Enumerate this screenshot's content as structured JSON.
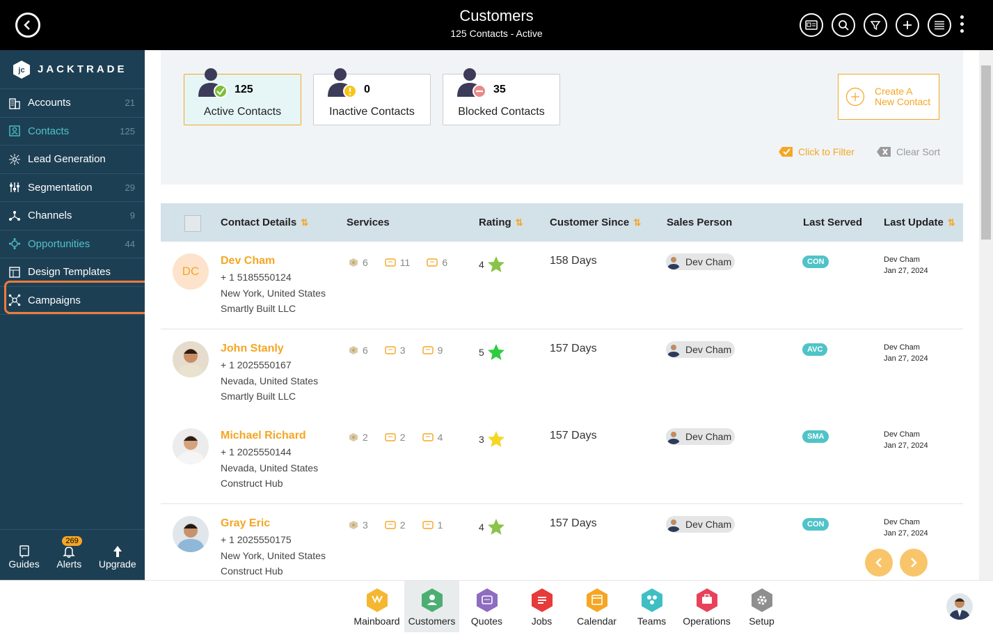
{
  "header": {
    "title": "Customers",
    "subtitle": "125 Contacts - Active"
  },
  "sidebar": {
    "logo_text": "JACKTRADE",
    "items": [
      {
        "label": "Accounts",
        "count": "21",
        "icon": "building-icon"
      },
      {
        "label": "Contacts",
        "count": "125",
        "icon": "contacts-icon"
      },
      {
        "label": "Lead Generation",
        "count": "",
        "icon": "lead-icon"
      },
      {
        "label": "Segmentation",
        "count": "29",
        "icon": "sliders-icon"
      },
      {
        "label": "Channels",
        "count": "9",
        "icon": "channels-icon"
      },
      {
        "label": "Opportunities",
        "count": "44",
        "icon": "opportunities-icon"
      },
      {
        "label": "Design Templates",
        "count": "",
        "icon": "templates-icon"
      },
      {
        "label": "Campaigns",
        "count": "",
        "icon": "campaigns-icon"
      }
    ],
    "bottom": {
      "guides": "Guides",
      "alerts": "Alerts",
      "alerts_count": "269",
      "upgrade": "Upgrade"
    }
  },
  "stats": {
    "active": {
      "count": "125",
      "label": "Active Contacts"
    },
    "inactive": {
      "count": "0",
      "label": "Inactive Contacts"
    },
    "blocked": {
      "count": "35",
      "label": "Blocked Contacts"
    }
  },
  "create_button": {
    "line1": "Create A",
    "line2": "New Contact"
  },
  "filters": {
    "click_to_filter": "Click to Filter",
    "clear_sort": "Clear Sort"
  },
  "table": {
    "columns": {
      "contact": "Contact Details",
      "services": "Services",
      "rating": "Rating",
      "since": "Customer Since",
      "sales": "Sales Person",
      "served": "Last Served",
      "update": "Last Update"
    },
    "rows": [
      {
        "name": "Dev Cham",
        "initials": "DC",
        "phone": "+ 1 5185550124",
        "location": "New York, United States",
        "company": "Smartly Built LLC",
        "s1": "6",
        "s2": "11",
        "s3": "6",
        "rating": "4",
        "star_color": "#8bc34a",
        "since": "158 Days",
        "sales": "Dev Cham",
        "served": "CON",
        "upd_by": "Dev Cham",
        "upd_date": "Jan 27, 2024"
      },
      {
        "name": "John Stanly",
        "initials": "",
        "phone": "+ 1 2025550167",
        "location": "Nevada, United States",
        "company": "Smartly Built LLC",
        "s1": "6",
        "s2": "3",
        "s3": "9",
        "rating": "5",
        "star_color": "#2ecc40",
        "since": "157 Days",
        "sales": "Dev Cham",
        "served": "AVC",
        "upd_by": "Dev Cham",
        "upd_date": "Jan 27, 2024"
      },
      {
        "name": "Michael Richard",
        "initials": "",
        "phone": "+ 1 2025550144",
        "location": "Nevada, United States",
        "company": "Construct Hub",
        "s1": "2",
        "s2": "2",
        "s3": "4",
        "rating": "3",
        "star_color": "#f5d623",
        "since": "157 Days",
        "sales": "Dev Cham",
        "served": "SMA",
        "upd_by": "Dev Cham",
        "upd_date": "Jan 27, 2024"
      },
      {
        "name": "Gray Eric",
        "initials": "",
        "phone": "+ 1 2025550175",
        "location": "New York, United States",
        "company": "Construct Hub",
        "s1": "3",
        "s2": "2",
        "s3": "1",
        "rating": "4",
        "star_color": "#8bc34a",
        "since": "157 Days",
        "sales": "Dev Cham",
        "served": "CON",
        "upd_by": "Dev Cham",
        "upd_date": "Jan 27, 2024"
      }
    ]
  },
  "apps": [
    {
      "label": "Mainboard",
      "color": "#f5b731"
    },
    {
      "label": "Customers",
      "color": "#4caf72"
    },
    {
      "label": "Quotes",
      "color": "#8e6cc0"
    },
    {
      "label": "Jobs",
      "color": "#e63b3b"
    },
    {
      "label": "Calendar",
      "color": "#f5a623"
    },
    {
      "label": "Teams",
      "color": "#3fbfc4"
    },
    {
      "label": "Operations",
      "color": "#e8415a"
    },
    {
      "label": "Setup",
      "color": "#8f8f8f"
    }
  ]
}
